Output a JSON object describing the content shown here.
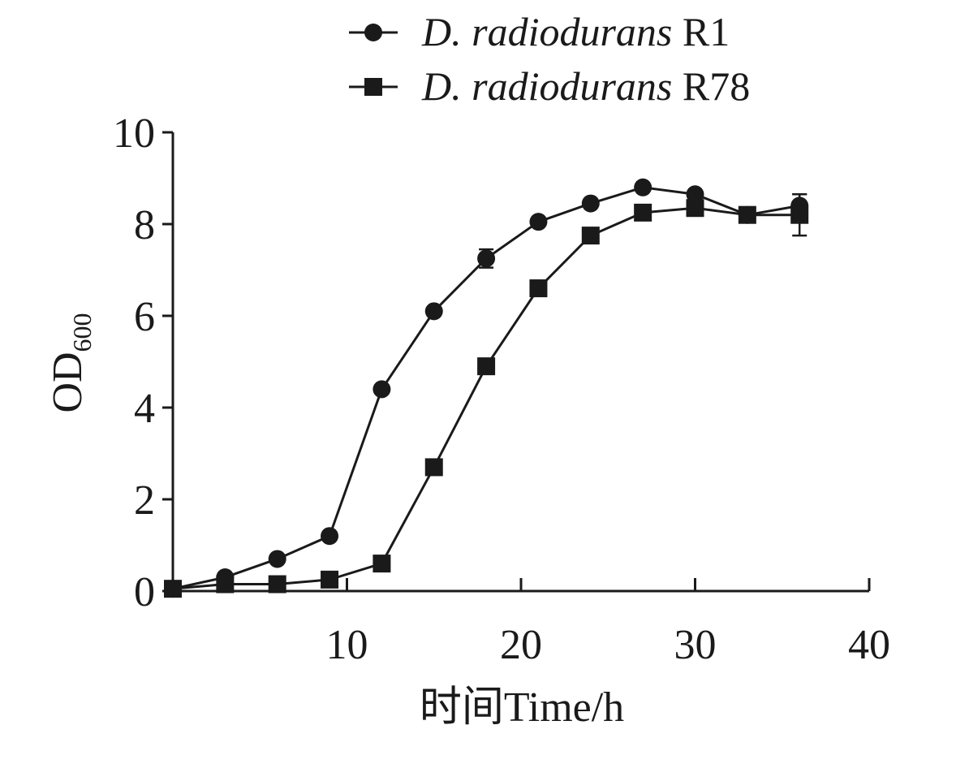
{
  "chart_data": {
    "type": "line",
    "xlabel": "时间Time/h",
    "ylabel": "OD",
    "ylabel_subscript": "600",
    "xlim": [
      0,
      40
    ],
    "ylim": [
      0,
      10
    ],
    "xticks": [
      10,
      20,
      30,
      40
    ],
    "yticks": [
      0,
      2,
      4,
      6,
      8,
      10
    ],
    "grid": false,
    "legend_position": "top-right",
    "series": [
      {
        "name_italic": "D. radiodurans",
        "name_suffix": " R1",
        "marker": "circle",
        "x": [
          0,
          3,
          6,
          9,
          12,
          15,
          18,
          21,
          24,
          27,
          30,
          33,
          36
        ],
        "y": [
          0.05,
          0.3,
          0.7,
          1.2,
          4.4,
          6.1,
          7.25,
          8.05,
          8.45,
          8.8,
          8.65,
          8.2,
          8.4
        ],
        "error": [
          0,
          0,
          0,
          0,
          0,
          0,
          0.2,
          0,
          0,
          0,
          0,
          0,
          0.25
        ]
      },
      {
        "name_italic": "D. radiodurans",
        "name_suffix": " R78",
        "marker": "square",
        "x": [
          0,
          3,
          6,
          9,
          12,
          15,
          18,
          21,
          24,
          27,
          30,
          33,
          36
        ],
        "y": [
          0.05,
          0.15,
          0.15,
          0.25,
          0.6,
          2.7,
          4.9,
          6.6,
          7.75,
          8.25,
          8.35,
          8.2,
          8.2
        ],
        "error": [
          0,
          0,
          0,
          0,
          0,
          0,
          0,
          0,
          0,
          0,
          0,
          0,
          0.45
        ]
      }
    ],
    "colors": {
      "ink": "#1a1a1a",
      "background": "#ffffff"
    }
  }
}
